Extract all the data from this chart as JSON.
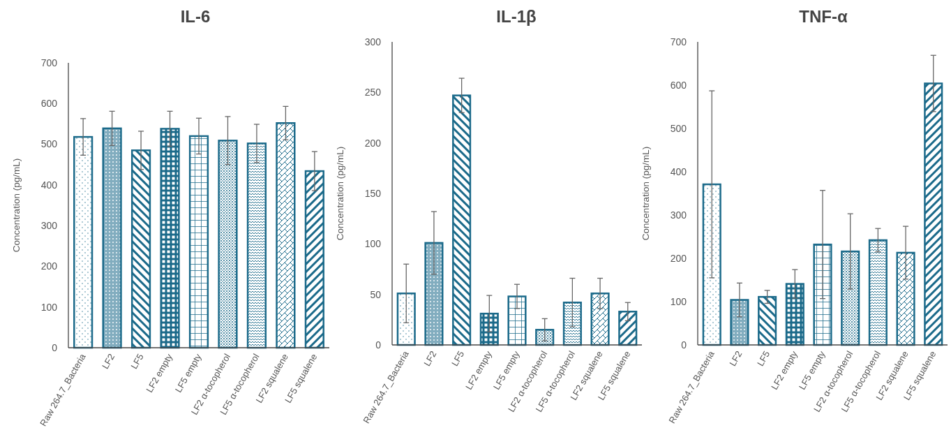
{
  "chart_data": [
    {
      "type": "bar",
      "title": "IL-6",
      "ylabel": "Concentration (pg/mL)",
      "categories": [
        "Raw 264.7_Bacteria",
        "LF2",
        "LF5",
        "LF2 empty",
        "LF5 empty",
        "LF2 α-tocopherol",
        "LF5 α-tocopherol",
        "LF2 squalene",
        "LF5 squalene"
      ],
      "values": [
        518,
        539,
        485,
        538,
        520,
        509,
        502,
        552,
        434
      ],
      "errors": [
        45,
        42,
        47,
        43,
        44,
        59,
        47,
        41,
        48
      ],
      "color": "#1b6a8a",
      "ylim": [
        0,
        700
      ],
      "yticks": [
        0,
        100,
        200,
        300,
        400,
        500,
        600,
        700
      ],
      "grid": false
    },
    {
      "type": "bar",
      "title": "IL-1β",
      "ylabel": "Concentration (pg/mL)",
      "categories": [
        "Raw 264.7_Bacteria",
        "LF2",
        "LF5",
        "LF2 empty",
        "LF5 empty",
        "LF2 α-tocopherol",
        "LF5 α-tocopherol",
        "LF2 squalene",
        "LF5 squalene"
      ],
      "values": [
        51,
        101,
        247,
        31,
        48,
        15,
        42,
        51,
        33
      ],
      "errors": [
        29,
        31,
        17,
        18,
        12,
        11,
        24,
        15,
        9
      ],
      "color": "#1b6a8a",
      "ylim": [
        0,
        300
      ],
      "yticks": [
        0,
        50,
        100,
        150,
        200,
        250,
        300
      ],
      "grid": false
    },
    {
      "type": "bar",
      "title": "TNF-α",
      "ylabel": "Concentration (pg/mL)",
      "categories": [
        "Raw 264.7_Bacteria",
        "LF2",
        "LF5",
        "LF2 empty",
        "LF5 empty",
        "LF2 α-tocopherol",
        "LF5 α-tocopherol",
        "LF2 squalene",
        "LF5 squalene"
      ],
      "values": [
        371,
        104,
        111,
        141,
        232,
        216,
        242,
        213,
        604
      ],
      "errors": [
        216,
        39,
        15,
        33,
        125,
        87,
        27,
        61,
        65
      ],
      "color": "#1b6a8a",
      "ylim": [
        0,
        700
      ],
      "yticks": [
        0,
        100,
        200,
        300,
        400,
        500,
        600,
        700
      ],
      "grid": false
    }
  ]
}
